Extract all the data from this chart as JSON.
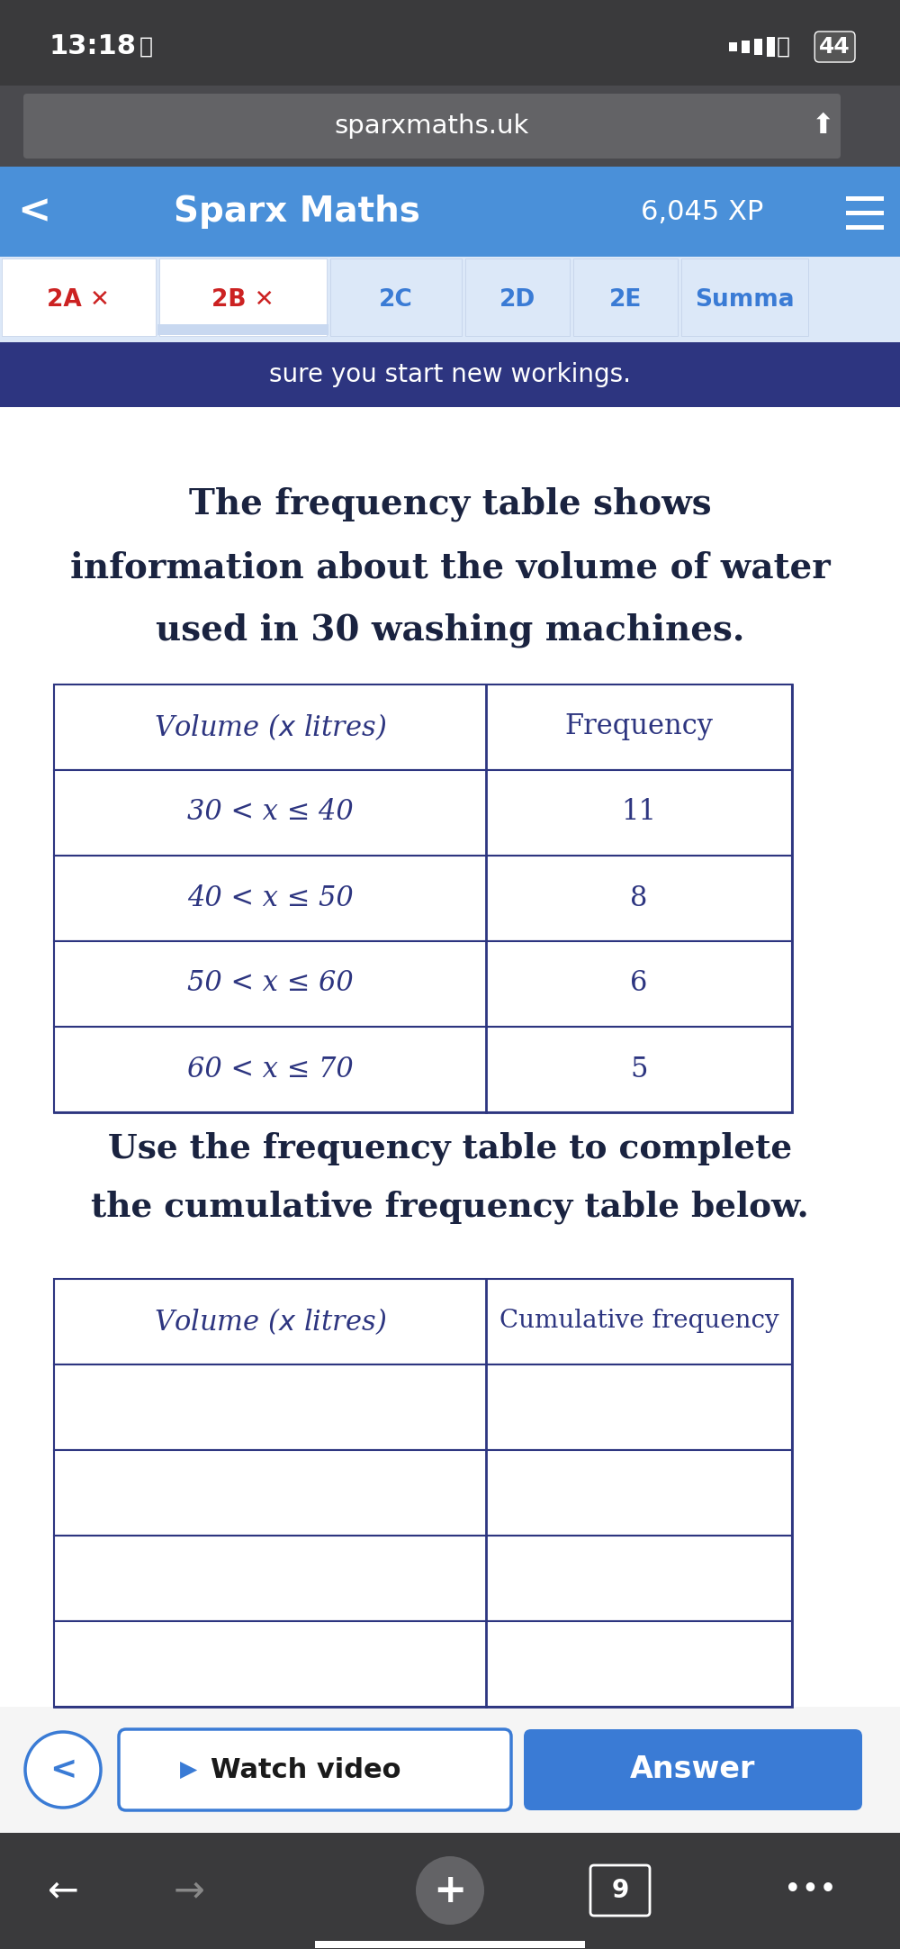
{
  "status_bar_bg": "#3a3a3c",
  "status_time": "13:18",
  "status_battery": "44",
  "url_bar_bg": "#636366",
  "url_text": "sparxmaths.uk",
  "nav_bar_bg": "#4a90d9",
  "nav_bar_text": "Sparx Maths",
  "nav_xp": "6,045 XP",
  "tab_labels": [
    "2A ✕",
    "2B ✕",
    "2C",
    "2D",
    "2E",
    "Summa"
  ],
  "tab_active": [
    0,
    1
  ],
  "tab_bg": "#e8f0fa",
  "tab_active_bg": "#ffffff",
  "tab_red_color": "#cc2222",
  "tab_blue_color": "#3a7bd5",
  "banner_bg": "#2d3580",
  "banner_text": "sure you start new workings.",
  "body_bg": "#ffffff",
  "question_text": "The frequency table shows\ninformation about the volume of water\nused in 30 washing machines.",
  "question_color": "#1a2340",
  "freq_table_header": [
    "Volume (x litres)",
    "Frequency"
  ],
  "freq_table_rows": [
    [
      "30 < x ≤ 40",
      "11"
    ],
    [
      "40 < x ≤ 50",
      "8"
    ],
    [
      "50 < x ≤ 60",
      "6"
    ],
    [
      "60 < x ≤ 70",
      "5"
    ]
  ],
  "instruction_text": "Use the frequency table to complete\nthe cumulative frequency table below.",
  "cum_table_header": [
    "Volume (x litres)",
    "Cumulative frequency"
  ],
  "cum_table_rows": [
    [
      "",
      ""
    ],
    [
      "",
      ""
    ],
    [
      "",
      ""
    ],
    [
      "",
      ""
    ]
  ],
  "bottom_bar_bg": "#f0f0f0",
  "watch_video_text": "Watch video",
  "answer_text": "Answer",
  "answer_btn_color": "#3a7bd5",
  "watch_btn_color": "#ffffff",
  "footer_bg": "#3a3a3c",
  "page_num": "9",
  "table_border_color": "#2d3580",
  "table_text_color": "#2d3580"
}
